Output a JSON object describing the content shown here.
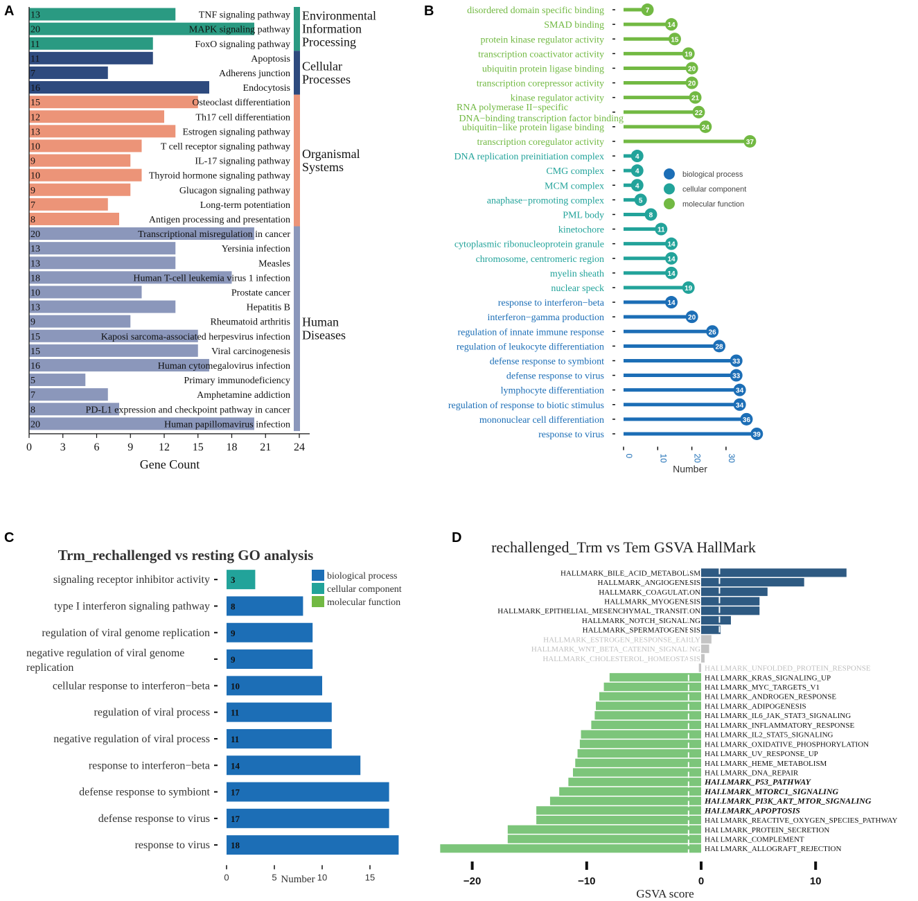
{
  "panel_labels": {
    "a": "A",
    "b": "B",
    "c": "C",
    "d": "D"
  },
  "colors": {
    "env": "#2a9a82",
    "cell": "#2e4a7e",
    "org": "#ec9478",
    "human": "#8b97bb",
    "bp": "#1c6eb6",
    "cc": "#22a39a",
    "mf": "#72b943",
    "gsva_pos": "#2e5a82",
    "gsva_neg": "#7cc57a",
    "gsva_ns": "#c4c4c4"
  },
  "chart_data": [
    {
      "type": "bar",
      "orientation": "horizontal",
      "xlabel": "Gene Count",
      "xlim": [
        0,
        24
      ],
      "xticks": [
        0,
        3,
        6,
        9,
        12,
        15,
        18,
        21,
        24
      ],
      "groups": [
        {
          "name": "Environmental Information Processing",
          "lines": [
            "Environmental",
            "Information",
            "Processing"
          ],
          "color": "env"
        },
        {
          "name": "Cellular Processes",
          "lines": [
            "Cellular",
            "Processes"
          ],
          "color": "cell"
        },
        {
          "name": "Organismal Systems",
          "lines": [
            "Organismal",
            "Systems"
          ],
          "color": "org"
        },
        {
          "name": "Human Diseases",
          "lines": [
            "Human",
            "Diseases"
          ],
          "color": "human"
        }
      ],
      "bars": [
        {
          "label": "TNF signaling pathway",
          "value": 13,
          "group": 0
        },
        {
          "label": "MAPK signaling pathway",
          "value": 20,
          "group": 0
        },
        {
          "label": "FoxO signaling pathway",
          "value": 11,
          "group": 0
        },
        {
          "label": "Apoptosis",
          "value": 11,
          "group": 1
        },
        {
          "label": "Adherens junction",
          "value": 7,
          "group": 1
        },
        {
          "label": "Endocytosis",
          "value": 16,
          "group": 1
        },
        {
          "label": "Osteoclast differentiation",
          "value": 15,
          "group": 2
        },
        {
          "label": "Th17 cell differentiation",
          "value": 12,
          "group": 2
        },
        {
          "label": "Estrogen signaling pathway",
          "value": 13,
          "group": 2
        },
        {
          "label": "T cell receptor signaling pathway",
          "value": 10,
          "group": 2
        },
        {
          "label": "IL-17 signaling pathway",
          "value": 9,
          "group": 2
        },
        {
          "label": "Thyroid hormone signaling pathway",
          "value": 10,
          "group": 2
        },
        {
          "label": "Glucagon signaling pathway",
          "value": 9,
          "group": 2
        },
        {
          "label": "Long-term potentiation",
          "value": 7,
          "group": 2
        },
        {
          "label": "Antigen processing and presentation",
          "value": 8,
          "group": 2
        },
        {
          "label": "Transcriptional misregulation in cancer",
          "value": 20,
          "group": 3
        },
        {
          "label": "Yersinia infection",
          "value": 13,
          "group": 3
        },
        {
          "label": "Measles",
          "value": 13,
          "group": 3
        },
        {
          "label": "Human T-cell leukemia virus 1 infection",
          "value": 18,
          "group": 3
        },
        {
          "label": "Prostate cancer",
          "value": 10,
          "group": 3
        },
        {
          "label": "Hepatitis B",
          "value": 13,
          "group": 3
        },
        {
          "label": "Rheumatoid arthritis",
          "value": 9,
          "group": 3
        },
        {
          "label": "Kaposi sarcoma-associated herpesvirus infection",
          "value": 15,
          "group": 3
        },
        {
          "label": "Viral carcinogenesis",
          "value": 15,
          "group": 3
        },
        {
          "label": "Human cytomegalovirus infection",
          "value": 16,
          "group": 3
        },
        {
          "label": "Primary immunodeficiency",
          "value": 5,
          "group": 3
        },
        {
          "label": "Amphetamine addiction",
          "value": 7,
          "group": 3
        },
        {
          "label": "PD-L1 expression and checkpoint pathway in cancer",
          "value": 8,
          "group": 3
        },
        {
          "label": "Human papillomavirus infection",
          "value": 20,
          "group": 3
        }
      ]
    },
    {
      "type": "lollipop",
      "xlabel": "Number",
      "xlim": [
        0,
        39
      ],
      "xticks": [
        0,
        10,
        20,
        30
      ],
      "legend": [
        {
          "label": "biological process",
          "key": "bp"
        },
        {
          "label": "cellular component",
          "key": "cc"
        },
        {
          "label": "molecular function",
          "key": "mf"
        }
      ],
      "items": [
        {
          "label": "disordered domain specific binding",
          "value": 7,
          "cat": "mf"
        },
        {
          "label": "SMAD binding",
          "value": 14,
          "cat": "mf"
        },
        {
          "label": "protein kinase regulator activity",
          "value": 15,
          "cat": "mf"
        },
        {
          "label": "transcription coactivator activity",
          "value": 19,
          "cat": "mf"
        },
        {
          "label": "ubiquitin protein ligase binding",
          "value": 20,
          "cat": "mf"
        },
        {
          "label": "transcription corepressor activity",
          "value": 20,
          "cat": "mf"
        },
        {
          "label": "kinase regulator activity",
          "value": 21,
          "cat": "mf"
        },
        {
          "label": "RNA polymerase II−specific DNA−binding transcription factor binding",
          "lines": [
            "RNA polymerase II−specific",
            "DNA−binding transcription factor binding"
          ],
          "value": 22,
          "cat": "mf"
        },
        {
          "label": "ubiquitin−like protein ligase binding",
          "value": 24,
          "cat": "mf"
        },
        {
          "label": "transcription coregulator activity",
          "value": 37,
          "cat": "mf"
        },
        {
          "label": "DNA replication preinitiation complex",
          "value": 4,
          "cat": "cc"
        },
        {
          "label": "CMG complex",
          "value": 4,
          "cat": "cc"
        },
        {
          "label": "MCM complex",
          "value": 4,
          "cat": "cc"
        },
        {
          "label": "anaphase−promoting complex",
          "value": 5,
          "cat": "cc"
        },
        {
          "label": "PML body",
          "value": 8,
          "cat": "cc"
        },
        {
          "label": "kinetochore",
          "value": 11,
          "cat": "cc"
        },
        {
          "label": "cytoplasmic ribonucleoprotein granule",
          "value": 14,
          "cat": "cc"
        },
        {
          "label": "chromosome, centromeric region",
          "value": 14,
          "cat": "cc"
        },
        {
          "label": "myelin sheath",
          "value": 14,
          "cat": "cc"
        },
        {
          "label": "nuclear speck",
          "value": 19,
          "cat": "cc"
        },
        {
          "label": "response to interferon−beta",
          "value": 14,
          "cat": "bp"
        },
        {
          "label": "interferon−gamma production",
          "value": 20,
          "cat": "bp"
        },
        {
          "label": "regulation of innate immune response",
          "value": 26,
          "cat": "bp"
        },
        {
          "label": "regulation of leukocyte differentiation",
          "value": 28,
          "cat": "bp"
        },
        {
          "label": "defense response to symbiont",
          "value": 33,
          "cat": "bp"
        },
        {
          "label": "defense response to virus",
          "value": 33,
          "cat": "bp"
        },
        {
          "label": "lymphocyte differentiation",
          "value": 34,
          "cat": "bp"
        },
        {
          "label": "regulation of response to biotic stimulus",
          "value": 34,
          "cat": "bp"
        },
        {
          "label": "mononuclear cell differentiation",
          "value": 36,
          "cat": "bp"
        },
        {
          "label": "response to virus",
          "value": 39,
          "cat": "bp"
        }
      ]
    },
    {
      "type": "bar",
      "orientation": "horizontal",
      "title": "Trm_rechallenged vs resting GO analysis",
      "xlabel": "Number",
      "xlim": [
        0,
        18
      ],
      "xticks": [
        0,
        5,
        10,
        15
      ],
      "legend": [
        {
          "label": "biological process",
          "key": "bp"
        },
        {
          "label": "cellular component",
          "key": "cc"
        },
        {
          "label": "molecular function",
          "key": "mf"
        }
      ],
      "bars": [
        {
          "label": "signaling receptor inhibitor activity",
          "value": 3,
          "cat": "cc"
        },
        {
          "label": "type I interferon signaling pathway",
          "value": 8,
          "cat": "bp"
        },
        {
          "label": "regulation of viral genome replication",
          "value": 9,
          "cat": "bp"
        },
        {
          "label": "negative regulation of viral genome replication",
          "lines": [
            "negative regulation of viral genome",
            "replication"
          ],
          "value": 9,
          "cat": "bp"
        },
        {
          "label": "cellular response to interferon−beta",
          "value": 10,
          "cat": "bp"
        },
        {
          "label": "regulation of viral process",
          "value": 11,
          "cat": "bp"
        },
        {
          "label": "negative regulation of viral process",
          "value": 11,
          "cat": "bp"
        },
        {
          "label": "response to interferon−beta",
          "value": 14,
          "cat": "bp"
        },
        {
          "label": "defense response to symbiont",
          "value": 17,
          "cat": "bp"
        },
        {
          "label": "defense response to virus",
          "value": 17,
          "cat": "bp"
        },
        {
          "label": "response to virus",
          "value": 18,
          "cat": "bp"
        }
      ]
    },
    {
      "type": "bar",
      "orientation": "horizontal",
      "title": "rechallenged_Trm vs Tem  GSVA HallMark",
      "xlabel": "GSVA score",
      "xlim": [
        -23,
        13
      ],
      "xticks": [
        -20,
        -10,
        0,
        10
      ],
      "tick_labels": [
        "−20",
        "−10",
        "0",
        "10"
      ],
      "threshold": [
        -1.1,
        1.6
      ],
      "bars": [
        {
          "label": "HALLMARK_BILE_ACID_METABOLISM",
          "value": 12.7,
          "sig": "up"
        },
        {
          "label": "HALLMARK_ANGIOGENESIS",
          "value": 9.0,
          "sig": "up"
        },
        {
          "label": "HALLMARK_COAGULATION",
          "value": 5.8,
          "sig": "up"
        },
        {
          "label": "HALLMARK_MYOGENESIS",
          "value": 5.1,
          "sig": "up"
        },
        {
          "label": "HALLMARK_EPITHELIAL_MESENCHYMAL_TRANSITION",
          "value": 5.1,
          "sig": "up"
        },
        {
          "label": "HALLMARK_NOTCH_SIGNALING",
          "value": 2.6,
          "sig": "up"
        },
        {
          "label": "HALLMARK_SPERMATOGENESIS",
          "value": 1.7,
          "sig": "up"
        },
        {
          "label": "HALLMARK_ESTROGEN_RESPONSE_EARLY",
          "value": 0.9,
          "sig": "ns"
        },
        {
          "label": "HALLMARK_WNT_BETA_CATENIN_SIGNALING",
          "value": 0.7,
          "sig": "ns"
        },
        {
          "label": "HALLMARK_CHOLESTEROL_HOMEOSTASIS",
          "value": 0.3,
          "sig": "ns"
        },
        {
          "label": "HALLMARK_UNFOLDED_PROTEIN_RESPONSE",
          "value": -0.2,
          "sig": "ns"
        },
        {
          "label": "HALLMARK_KRAS_SIGNALING_UP",
          "value": -8.0,
          "sig": "down"
        },
        {
          "label": "HALLMARK_MYC_TARGETS_V1",
          "value": -8.5,
          "sig": "down"
        },
        {
          "label": "HALLMARK_ANDROGEN_RESPONSE",
          "value": -8.9,
          "sig": "down"
        },
        {
          "label": "HALLMARK_ADIPOGENESIS",
          "value": -9.2,
          "sig": "down"
        },
        {
          "label": "HALLMARK_IL6_JAK_STAT3_SIGNALING",
          "value": -9.3,
          "sig": "down"
        },
        {
          "label": "HALLMARK_INFLAMMATORY_RESPONSE",
          "value": -9.6,
          "sig": "down"
        },
        {
          "label": "HALLMARK_IL2_STAT5_SIGNALING",
          "value": -10.5,
          "sig": "down"
        },
        {
          "label": "HALLMARK_OXIDATIVE_PHOSPHORYLATION",
          "value": -10.6,
          "sig": "down"
        },
        {
          "label": "HALLMARK_UV_RESPONSE_UP",
          "value": -10.8,
          "sig": "down"
        },
        {
          "label": "HALLMARK_HEME_METABOLISM",
          "value": -11.0,
          "sig": "down"
        },
        {
          "label": "HALLMARK_DNA_REPAIR",
          "value": -11.2,
          "sig": "down"
        },
        {
          "label": "HALLMARK_P53_PATHWAY",
          "value": -11.6,
          "sig": "down",
          "emph": true
        },
        {
          "label": "HALLMARK_MTORC1_SIGNALING",
          "value": -12.4,
          "sig": "down",
          "emph": true
        },
        {
          "label": "HALLMARK_PI3K_AKT_MTOR_SIGNALING",
          "value": -13.2,
          "sig": "down",
          "emph": true
        },
        {
          "label": "HALLMARK_APOPTOSIS",
          "value": -14.4,
          "sig": "down",
          "emph": true
        },
        {
          "label": "HALLMARK_REACTIVE_OXYGEN_SPECIES_PATHWAY",
          "value": -14.4,
          "sig": "down"
        },
        {
          "label": "HALLMARK_PROTEIN_SECRETION",
          "value": -16.9,
          "sig": "down"
        },
        {
          "label": "HALLMARK_COMPLEMENT",
          "value": -16.9,
          "sig": "down"
        },
        {
          "label": "HALLMARK_ALLOGRAFT_REJECTION",
          "value": -22.8,
          "sig": "down"
        }
      ]
    }
  ]
}
